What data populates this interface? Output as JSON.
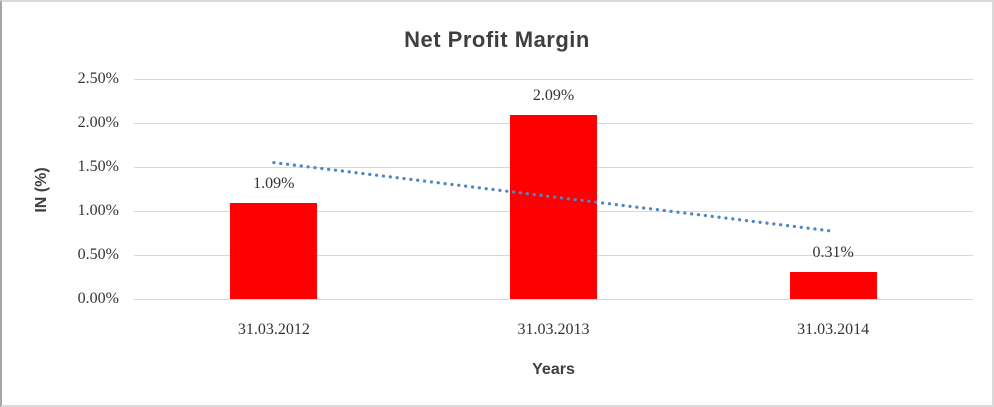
{
  "chart_data": {
    "type": "bar",
    "title": "Net Profit Margin",
    "xlabel": "Years",
    "ylabel": "IN (%)",
    "categories": [
      "31.03.2012",
      "31.03.2013",
      "31.03.2014"
    ],
    "values": [
      1.09,
      2.09,
      0.31
    ],
    "data_labels": [
      "1.09%",
      "2.09%",
      "0.31%"
    ],
    "y_ticks": [
      {
        "value": 0.0,
        "label": "0.00%"
      },
      {
        "value": 0.5,
        "label": "0.50%"
      },
      {
        "value": 1.0,
        "label": "1.00%"
      },
      {
        "value": 1.5,
        "label": "1.50%"
      },
      {
        "value": 2.0,
        "label": "2.00%"
      },
      {
        "value": 2.5,
        "label": "2.50%"
      }
    ],
    "ylim": [
      0,
      2.5
    ],
    "grid": true,
    "legend": "none",
    "bar_color": "#ff0000",
    "gridline_color": "#d9d9d9",
    "trendline": {
      "style": "dotted",
      "color": "#4e86c6",
      "start_value": 1.55,
      "end_value": 0.77
    }
  }
}
